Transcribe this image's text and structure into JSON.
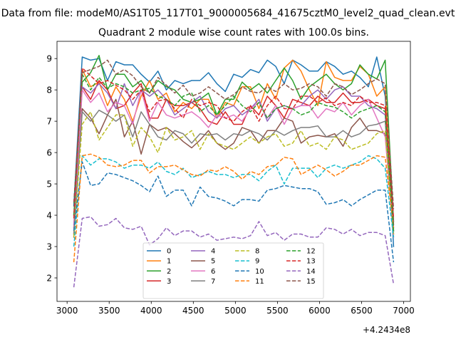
{
  "figure": {
    "suptitle": "Data from file: modeM0/AS1T05_117T01_9000005684_41675cztM0_level2_quad_clean.evt"
  },
  "chart_data": {
    "type": "line",
    "title": "Quadrant 2 module wise count rates with 100.0s bins.",
    "xlabel": "",
    "ylabel": "",
    "x_offset_label": "+4.2434e8",
    "xlim": [
      2880,
      7080
    ],
    "ylim": [
      1.25,
      9.55
    ],
    "xticks": [
      3000,
      3500,
      4000,
      4500,
      5000,
      5500,
      6000,
      6500,
      7000
    ],
    "yticks": [
      2,
      3,
      4,
      5,
      6,
      7,
      8,
      9
    ],
    "grid": false,
    "legend": {
      "placement": "lower-center",
      "columns": 4
    },
    "x": [
      3080,
      3180,
      3280,
      3380,
      3480,
      3580,
      3680,
      3780,
      3880,
      3980,
      4080,
      4180,
      4280,
      4380,
      4480,
      4580,
      4680,
      4780,
      4880,
      4980,
      5080,
      5180,
      5280,
      5380,
      5480,
      5580,
      5680,
      5780,
      5880,
      5980,
      6080,
      6180,
      6280,
      6380,
      6480,
      6580,
      6680,
      6780,
      6880
    ],
    "series": [
      {
        "name": "0",
        "color": "#1f77b4",
        "dash": "solid",
        "values": [
          4.3,
          9.05,
          8.95,
          9.0,
          8.3,
          8.9,
          8.8,
          8.8,
          8.5,
          8.25,
          8.6,
          8.0,
          8.3,
          8.2,
          8.3,
          8.3,
          8.55,
          8.2,
          7.95,
          8.5,
          8.4,
          8.65,
          8.55,
          8.95,
          8.75,
          8.2,
          8.95,
          8.8,
          8.6,
          8.6,
          8.9,
          8.75,
          8.5,
          8.6,
          8.4,
          8.1,
          9.05,
          7.8,
          3.0
        ]
      },
      {
        "name": "1",
        "color": "#ff7f0e",
        "dash": "solid",
        "values": [
          3.6,
          8.65,
          8.1,
          8.25,
          7.5,
          8.1,
          7.7,
          7.0,
          7.8,
          8.3,
          7.7,
          7.9,
          7.3,
          7.6,
          7.4,
          7.7,
          7.7,
          7.1,
          7.6,
          7.5,
          8.1,
          8.1,
          7.4,
          8.2,
          7.7,
          8.7,
          8.95,
          8.6,
          8.0,
          7.5,
          8.9,
          8.4,
          8.3,
          8.3,
          8.75,
          8.5,
          7.8,
          8.1,
          3.4
        ]
      },
      {
        "name": "2",
        "color": "#2ca02c",
        "dash": "solid",
        "values": [
          4.0,
          8.25,
          8.55,
          9.1,
          8.0,
          8.5,
          8.5,
          8.1,
          8.3,
          7.9,
          8.3,
          8.1,
          8.0,
          7.7,
          7.6,
          7.7,
          7.9,
          7.2,
          7.7,
          7.7,
          8.25,
          8.0,
          8.2,
          7.9,
          8.3,
          8.7,
          8.3,
          7.7,
          8.1,
          8.3,
          8.5,
          8.2,
          8.0,
          8.2,
          8.8,
          8.5,
          8.35,
          8.95,
          3.8
        ]
      },
      {
        "name": "3",
        "color": "#d62728",
        "dash": "solid",
        "values": [
          3.4,
          8.1,
          7.7,
          8.3,
          8.0,
          7.4,
          7.5,
          7.9,
          8.2,
          7.1,
          7.1,
          7.7,
          7.5,
          7.5,
          7.6,
          7.4,
          7.0,
          6.9,
          7.3,
          6.9,
          6.9,
          7.5,
          7.2,
          7.8,
          7.5,
          7.1,
          7.7,
          7.6,
          7.5,
          7.8,
          7.6,
          7.6,
          7.9,
          7.6,
          7.6,
          7.7,
          7.5,
          7.4,
          3.7
        ]
      },
      {
        "name": "4",
        "color": "#9467bd",
        "dash": "solid",
        "values": [
          3.7,
          8.1,
          7.9,
          8.2,
          7.9,
          7.4,
          8.2,
          7.5,
          8.0,
          7.8,
          8.0,
          7.7,
          7.2,
          7.4,
          7.6,
          7.8,
          7.3,
          7.1,
          7.4,
          7.5,
          7.2,
          7.4,
          7.7,
          7.0,
          7.4,
          7.5,
          7.4,
          7.5,
          7.8,
          8.0,
          7.7,
          8.0,
          8.1,
          7.8,
          7.8,
          7.5,
          7.4,
          7.2,
          3.6
        ]
      },
      {
        "name": "5",
        "color": "#8c564b",
        "dash": "solid",
        "values": [
          3.3,
          7.4,
          7.1,
          6.6,
          7.2,
          7.7,
          6.5,
          7.0,
          5.95,
          6.9,
          6.7,
          6.8,
          6.6,
          6.35,
          6.15,
          6.4,
          6.7,
          6.3,
          6.1,
          6.3,
          6.8,
          6.7,
          6.3,
          6.7,
          6.7,
          7.1,
          7.0,
          6.3,
          6.5,
          6.55,
          6.5,
          6.6,
          6.2,
          6.8,
          7.1,
          6.7,
          6.7,
          6.6,
          3.5
        ]
      },
      {
        "name": "6",
        "color": "#e377c2",
        "dash": "solid",
        "values": [
          3.6,
          8.0,
          7.6,
          7.9,
          7.3,
          7.6,
          7.5,
          6.9,
          8.0,
          7.0,
          7.6,
          7.2,
          7.1,
          7.2,
          7.3,
          7.1,
          6.8,
          7.2,
          7.1,
          7.2,
          7.0,
          7.4,
          7.6,
          7.1,
          7.5,
          6.9,
          7.4,
          7.5,
          7.5,
          7.1,
          7.4,
          7.3,
          7.6,
          7.2,
          7.5,
          7.7,
          7.1,
          6.5,
          3.3
        ]
      },
      {
        "name": "7",
        "color": "#7f7f7f",
        "dash": "solid",
        "values": [
          3.4,
          7.3,
          7.0,
          7.35,
          7.2,
          7.0,
          7.2,
          6.5,
          7.3,
          6.9,
          6.5,
          6.4,
          6.7,
          6.6,
          6.3,
          6.6,
          6.55,
          6.6,
          6.4,
          6.6,
          6.55,
          6.7,
          6.6,
          6.4,
          6.7,
          6.55,
          6.7,
          6.8,
          6.8,
          6.85,
          6.5,
          6.5,
          6.7,
          6.5,
          6.6,
          6.85,
          6.9,
          7.0,
          3.5
        ]
      },
      {
        "name": "8",
        "color": "#bcbd22",
        "dash": "dashed",
        "values": [
          3.3,
          6.9,
          7.3,
          6.4,
          6.8,
          7.2,
          7.2,
          6.2,
          6.8,
          6.5,
          6.0,
          6.8,
          6.4,
          6.5,
          6.7,
          6.1,
          6.6,
          6.3,
          6.2,
          6.1,
          6.3,
          6.5,
          6.3,
          6.5,
          6.6,
          6.2,
          6.3,
          6.7,
          6.2,
          6.3,
          6.1,
          6.5,
          6.4,
          6.1,
          6.2,
          6.3,
          6.6,
          6.7,
          3.4
        ]
      },
      {
        "name": "9",
        "color": "#17becf",
        "dash": "dashed",
        "values": [
          3.0,
          5.9,
          5.6,
          5.8,
          5.8,
          5.7,
          5.5,
          5.6,
          5.6,
          5.5,
          5.7,
          5.4,
          5.3,
          5.5,
          5.2,
          5.3,
          5.4,
          5.3,
          5.3,
          5.2,
          5.3,
          5.3,
          5.1,
          5.4,
          5.6,
          5.0,
          5.5,
          5.5,
          5.5,
          5.2,
          5.5,
          5.6,
          5.5,
          5.6,
          5.7,
          5.9,
          5.8,
          5.5,
          3.3
        ]
      },
      {
        "name": "10",
        "color": "#1f77b4",
        "dash": "dashed",
        "values": [
          3.5,
          5.7,
          4.95,
          5.0,
          5.35,
          5.3,
          5.2,
          5.1,
          4.95,
          4.75,
          5.25,
          4.6,
          4.8,
          4.8,
          4.3,
          4.9,
          4.6,
          4.55,
          4.45,
          4.3,
          4.5,
          4.5,
          4.45,
          4.8,
          4.85,
          4.95,
          4.9,
          4.85,
          4.85,
          4.75,
          4.35,
          4.4,
          4.5,
          4.3,
          4.5,
          4.65,
          4.8,
          4.8,
          2.5
        ]
      },
      {
        "name": "11",
        "color": "#ff7f0e",
        "dash": "dashed",
        "values": [
          2.5,
          5.9,
          5.95,
          5.85,
          5.6,
          5.55,
          5.6,
          5.75,
          5.75,
          5.35,
          5.55,
          5.55,
          5.6,
          5.45,
          5.3,
          5.25,
          5.45,
          5.4,
          5.55,
          5.4,
          5.15,
          5.4,
          5.3,
          5.55,
          5.6,
          5.85,
          5.8,
          5.3,
          5.45,
          5.6,
          5.45,
          5.25,
          5.4,
          5.6,
          5.6,
          5.75,
          5.9,
          5.85,
          3.6
        ]
      },
      {
        "name": "12",
        "color": "#2ca02c",
        "dash": "dashed",
        "values": [
          4.0,
          8.5,
          8.0,
          8.4,
          8.05,
          8.2,
          8.1,
          7.9,
          8.0,
          8.05,
          7.8,
          7.7,
          7.5,
          7.8,
          7.9,
          7.3,
          7.5,
          7.2,
          7.5,
          7.8,
          7.5,
          7.3,
          7.6,
          7.1,
          7.4,
          7.5,
          7.4,
          7.2,
          7.3,
          7.6,
          7.5,
          7.45,
          7.3,
          7.1,
          7.3,
          7.4,
          7.5,
          7.3,
          3.5
        ]
      },
      {
        "name": "13",
        "color": "#d62728",
        "dash": "dashed",
        "values": [
          3.9,
          8.7,
          8.45,
          8.2,
          8.3,
          8.15,
          8.0,
          7.7,
          8.0,
          7.3,
          7.65,
          7.7,
          7.4,
          7.1,
          7.7,
          7.5,
          7.6,
          7.5,
          7.1,
          7.0,
          7.3,
          7.5,
          7.0,
          7.5,
          7.8,
          7.4,
          7.4,
          7.8,
          7.8,
          7.6,
          7.75,
          7.5,
          7.6,
          7.5,
          7.8,
          7.6,
          7.6,
          7.5,
          3.9
        ]
      },
      {
        "name": "14",
        "color": "#9467bd",
        "dash": "dashed",
        "values": [
          1.7,
          3.9,
          3.95,
          3.65,
          3.7,
          3.9,
          3.6,
          3.55,
          3.65,
          3.05,
          3.25,
          3.6,
          3.35,
          3.5,
          3.5,
          3.3,
          3.4,
          3.2,
          3.25,
          3.3,
          3.25,
          3.35,
          3.8,
          3.35,
          3.45,
          3.2,
          3.4,
          3.4,
          3.3,
          3.3,
          3.6,
          3.55,
          3.4,
          3.55,
          3.35,
          3.45,
          3.45,
          3.35,
          1.8
        ]
      },
      {
        "name": "15",
        "color": "#8c564b",
        "dash": "dashed",
        "values": [
          4.4,
          8.55,
          8.65,
          8.75,
          8.95,
          8.5,
          8.65,
          8.45,
          8.1,
          7.9,
          8.4,
          8.15,
          7.9,
          8.15,
          7.8,
          7.9,
          8.1,
          7.9,
          7.7,
          7.85,
          8.1,
          7.95,
          7.9,
          8.1,
          7.95,
          8.2,
          8.0,
          8.05,
          8.2,
          8.1,
          7.8,
          8.2,
          8.1,
          7.85,
          8.0,
          8.2,
          8.35,
          8.2,
          4.2
        ]
      }
    ]
  }
}
